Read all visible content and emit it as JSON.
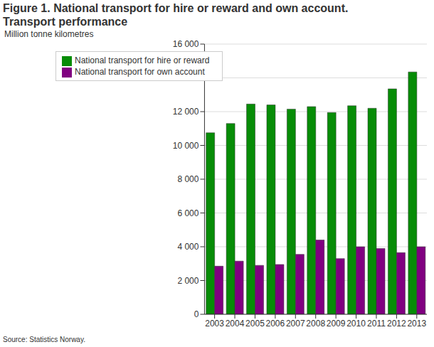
{
  "chart_data": {
    "type": "bar",
    "title": "Figure 1. National transport for hire or reward and own account. Transport performance",
    "y_label": "Million tonne kilometres",
    "source": "Source: Statistics Norway.",
    "categories": [
      "2003",
      "2004",
      "2005",
      "2006",
      "2007",
      "2008",
      "2009",
      "2010",
      "2011",
      "2012",
      "2013"
    ],
    "series": [
      {
        "name": "National transport for hire or reward",
        "color": "#078c07",
        "values": [
          10750,
          11300,
          12450,
          12400,
          12150,
          12300,
          11950,
          12350,
          12200,
          13350,
          14350
        ]
      },
      {
        "name": "National transport for own account",
        "color": "#800080",
        "values": [
          2850,
          3150,
          2900,
          2950,
          3550,
          4400,
          3300,
          4000,
          3900,
          3650,
          4000
        ]
      }
    ],
    "ylim": [
      0,
      16000
    ],
    "yticks": [
      0,
      {
        "value": 2000,
        "label": "2 000"
      },
      {
        "value": 4000,
        "label": "4 000"
      },
      {
        "value": 6000,
        "label": "6 000"
      },
      {
        "value": 8000,
        "label": "8 000"
      },
      {
        "value": 10000,
        "label": "10 000"
      },
      {
        "value": 12000,
        "label": "12 000"
      },
      {
        "value": 14000,
        "label": "14 000"
      },
      {
        "value": 16000,
        "label": "16 000"
      }
    ],
    "grid": true,
    "legend": "top-left"
  }
}
